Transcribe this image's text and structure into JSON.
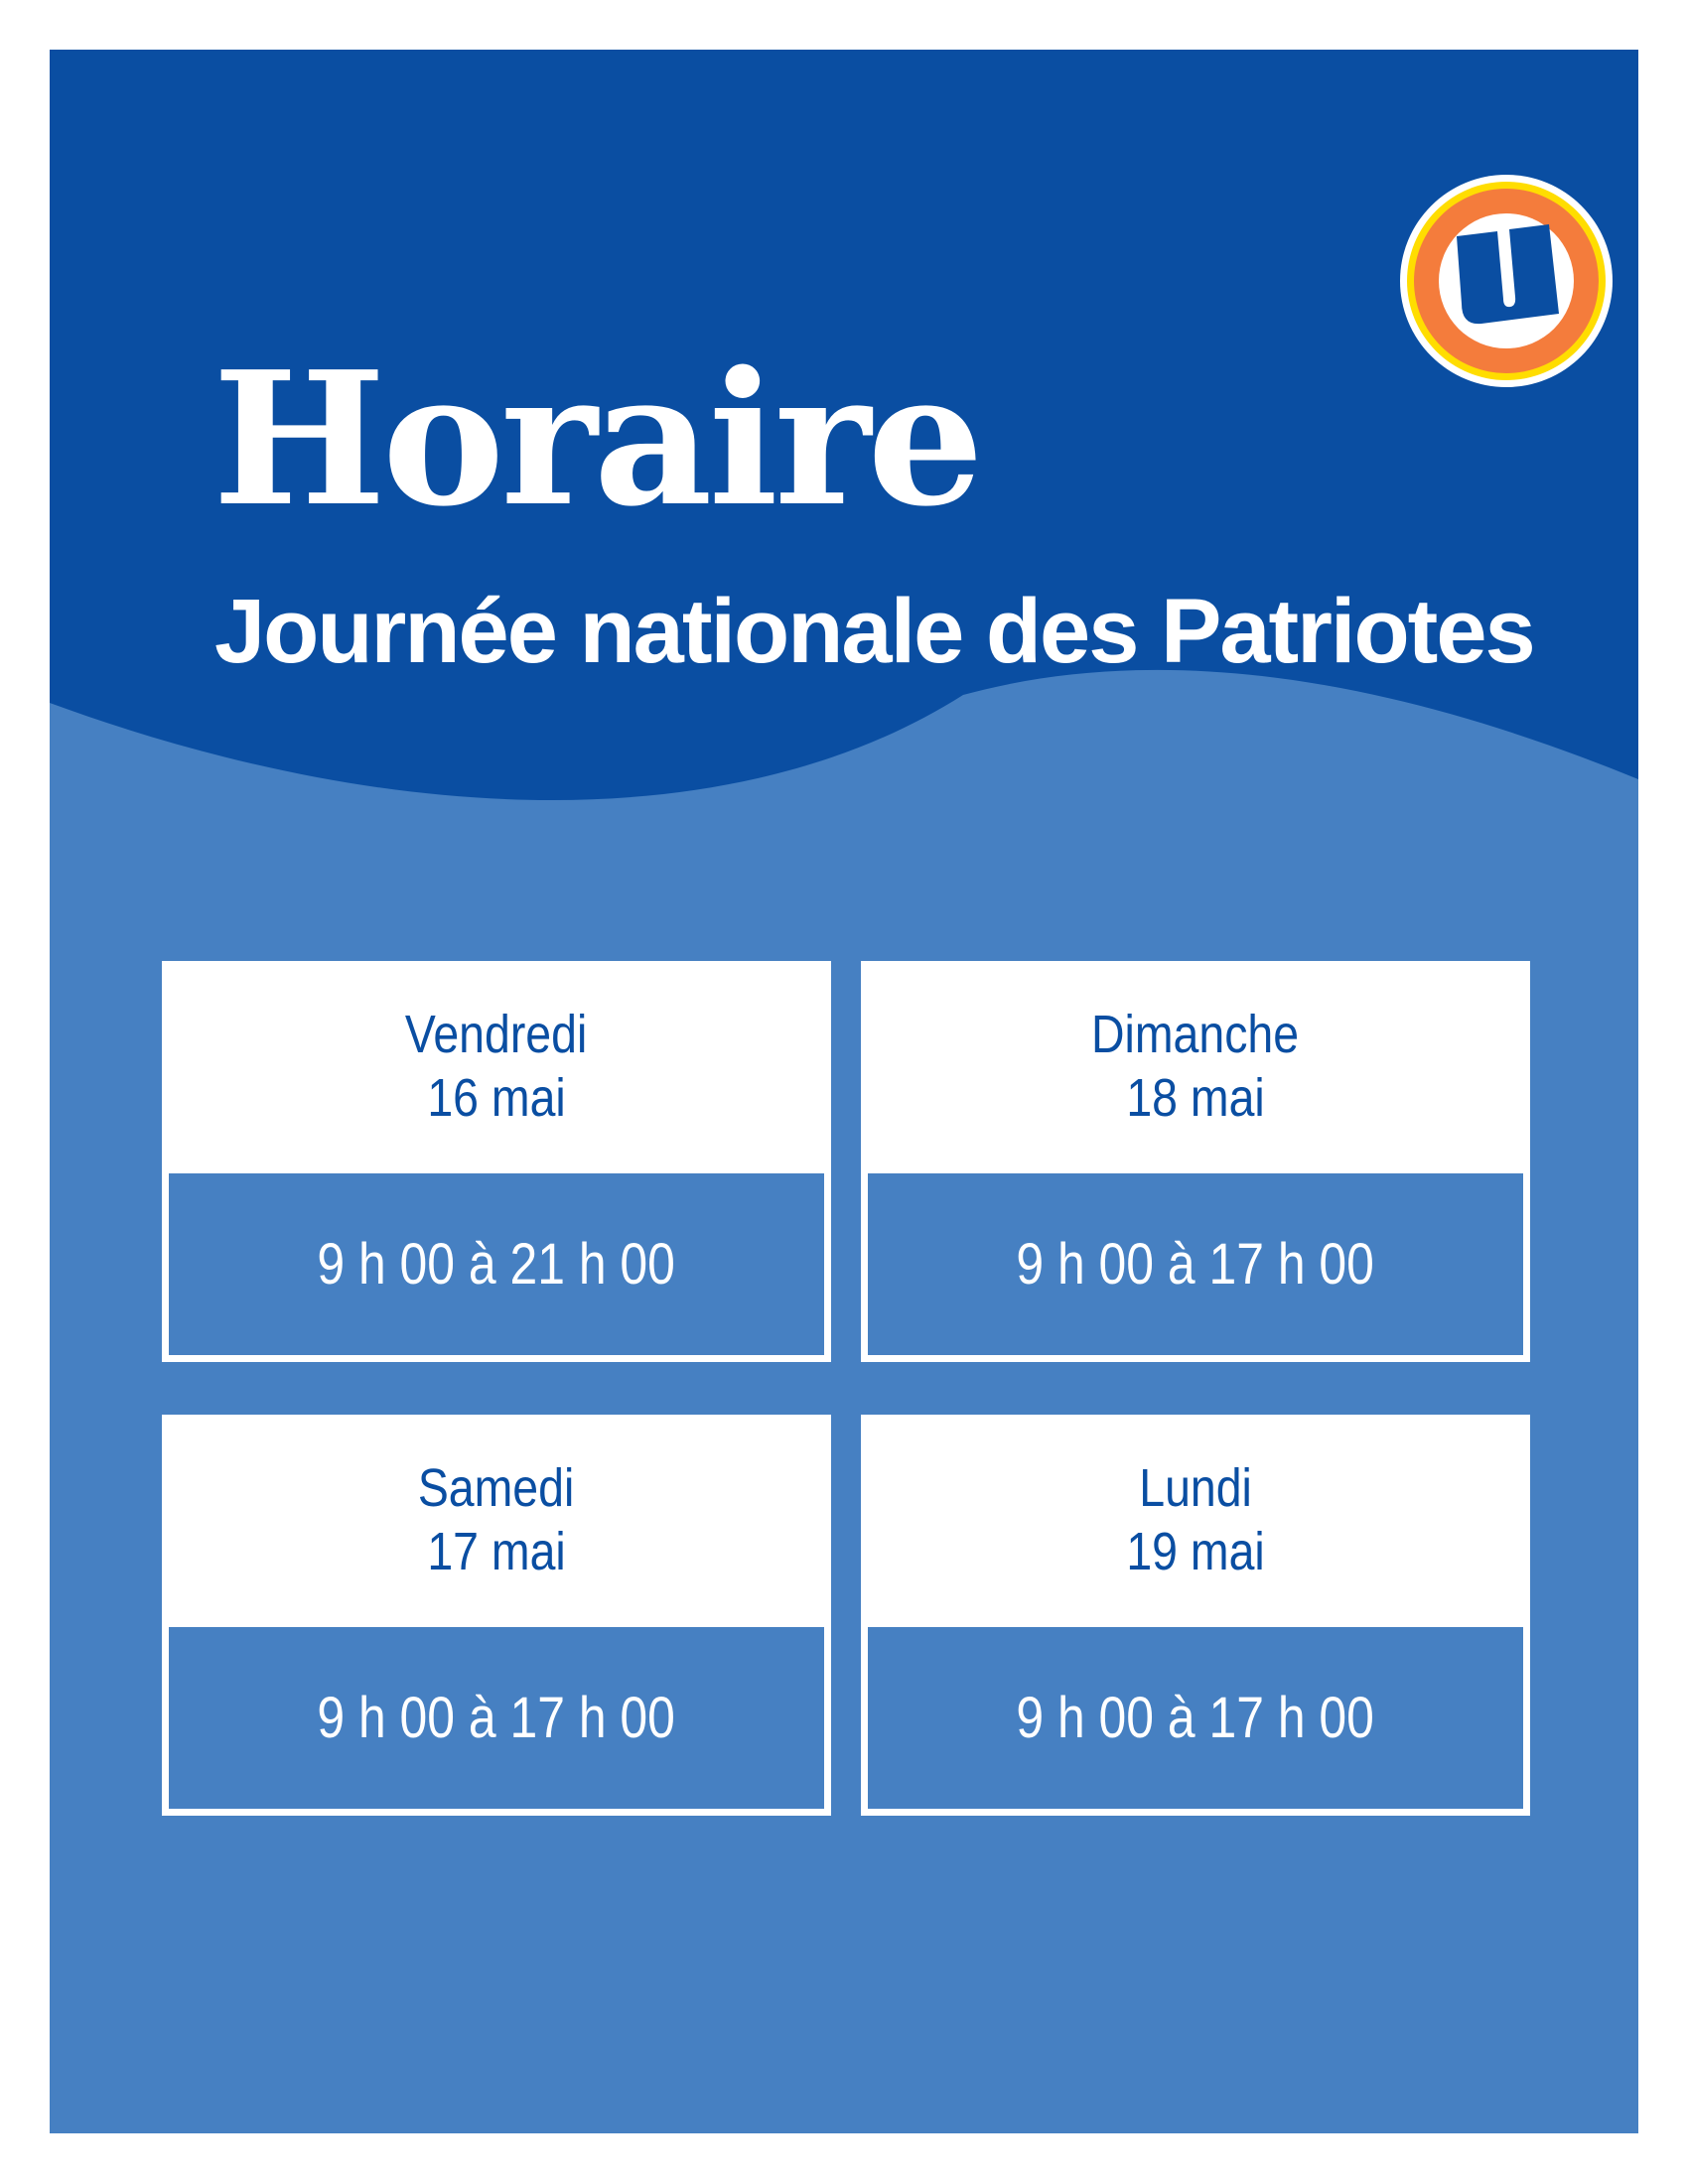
{
  "header": {
    "title": "Horaire",
    "subtitle": "Journée nationale des Patriotes"
  },
  "logo": {
    "letter": "U",
    "ring_colors": [
      "#ffffff",
      "#ffdd00",
      "#f47c3c"
    ]
  },
  "colors": {
    "dark_blue": "#0a4ea2",
    "light_blue": "#4680c2",
    "white": "#ffffff"
  },
  "schedule": [
    {
      "day": "Vendredi",
      "date": "16 mai",
      "hours": "9 h 00 à 21 h 00"
    },
    {
      "day": "Dimanche",
      "date": "18 mai",
      "hours": "9 h 00 à 17 h 00"
    },
    {
      "day": "Samedi",
      "date": "17 mai",
      "hours": "9 h 00 à 17 h 00"
    },
    {
      "day": "Lundi",
      "date": "19 mai",
      "hours": "9 h 00 à 17 h 00"
    }
  ]
}
